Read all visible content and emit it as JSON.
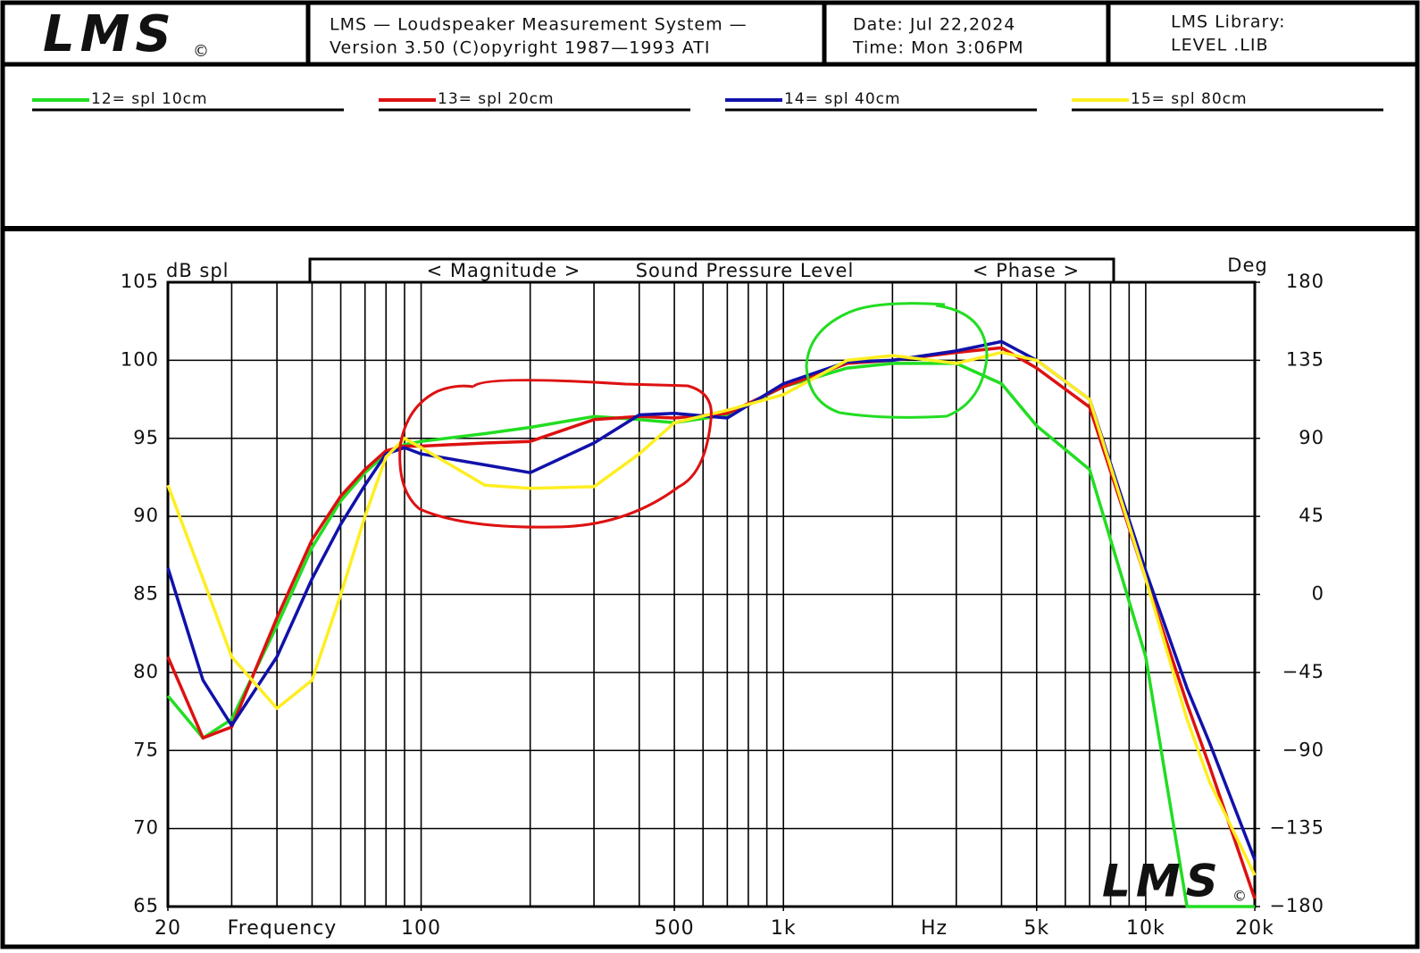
{
  "header": {
    "logo": "LMS",
    "logo_mark": "©",
    "system": "LMS — Loudspeaker Measurement System —",
    "version": "Version 3.50 (C)opyright 1987—1993 ATI",
    "date": "Date: Jul 22,2024",
    "time": "Time: Mon 3:06PM",
    "library": "LMS Library:",
    "library_file": "LEVEL .LIB"
  },
  "chart_data": {
    "type": "line",
    "title_left": "< Magnitude >",
    "title": "Sound Pressure Level",
    "title_right": "< Phase >",
    "y_label": "dB spl",
    "y2_label": "Deg",
    "x_label": "Frequency",
    "x_unit": "Hz",
    "watermark": "LMS",
    "watermark_mark": "©",
    "log_x": true,
    "xlim": [
      20,
      20000
    ],
    "xticks": [
      20,
      100,
      500,
      {
        "value": 1000,
        "label": "1k"
      },
      {
        "value": 5000,
        "label": "5k"
      },
      {
        "value": 10000,
        "label": "10k"
      },
      {
        "value": 20000,
        "label": "20k"
      }
    ],
    "xgrid": [
      20,
      30,
      40,
      50,
      60,
      70,
      80,
      90,
      100,
      200,
      300,
      400,
      500,
      600,
      700,
      800,
      900,
      1000,
      2000,
      3000,
      4000,
      5000,
      6000,
      7000,
      8000,
      9000,
      10000,
      20000
    ],
    "ylim": [
      65,
      105
    ],
    "yticks": [
      65,
      70,
      75,
      80,
      85,
      90,
      95,
      100,
      105
    ],
    "y2lim": [
      -180,
      180
    ],
    "y2ticks": [
      {
        "value": -180,
        "label": "−180"
      },
      {
        "value": -135,
        "label": "−135"
      },
      {
        "value": -90,
        "label": "−90"
      },
      {
        "value": -45,
        "label": "−45"
      },
      0,
      45,
      90,
      135,
      180
    ],
    "grid": true,
    "x": [
      20,
      25,
      30,
      40,
      50,
      60,
      70,
      80,
      90,
      100,
      150,
      200,
      300,
      400,
      500,
      700,
      1000,
      1500,
      2000,
      3000,
      4000,
      5000,
      7000,
      10000,
      13000,
      15000,
      20000
    ],
    "series": [
      {
        "name": "12= spl 10cm",
        "color": "#22dd22",
        "values": [
          78.5,
          75.8,
          77,
          83,
          88,
          91,
          92.8,
          94,
          94.6,
          94.8,
          95.3,
          95.7,
          96.4,
          96.2,
          96,
          96.5,
          98.3,
          99.5,
          99.8,
          99.8,
          98.5,
          95.8,
          93,
          81,
          65,
          65,
          65
        ]
      },
      {
        "name": "13= spl 20cm",
        "color": "#dd1111",
        "values": [
          81,
          75.8,
          76.5,
          83.5,
          88.5,
          91.3,
          93,
          94.2,
          94.5,
          94.5,
          94.7,
          94.8,
          96.2,
          96.4,
          96.3,
          96.6,
          98.3,
          99.8,
          100,
          100.5,
          100.8,
          99.5,
          97,
          86,
          78,
          74,
          65.5
        ]
      },
      {
        "name": "14= spl 40cm",
        "color": "#1111aa",
        "values": [
          86.7,
          79.5,
          76.6,
          81,
          86,
          89.5,
          92,
          94,
          94.4,
          94,
          93.3,
          92.8,
          94.7,
          96.5,
          96.6,
          96.3,
          98.5,
          99.9,
          100,
          100.6,
          101.2,
          100,
          97.5,
          86.5,
          79,
          75.5,
          68
        ]
      },
      {
        "name": "15= spl 80cm",
        "color": "#ffee22",
        "values": [
          92,
          86,
          81,
          77.7,
          79.5,
          85,
          90,
          93.8,
          95,
          94.4,
          92,
          91.8,
          91.9,
          94,
          96,
          96.8,
          97.8,
          100,
          100.3,
          99.8,
          100.5,
          100,
          97.5,
          86,
          77,
          73,
          67
        ]
      }
    ]
  }
}
